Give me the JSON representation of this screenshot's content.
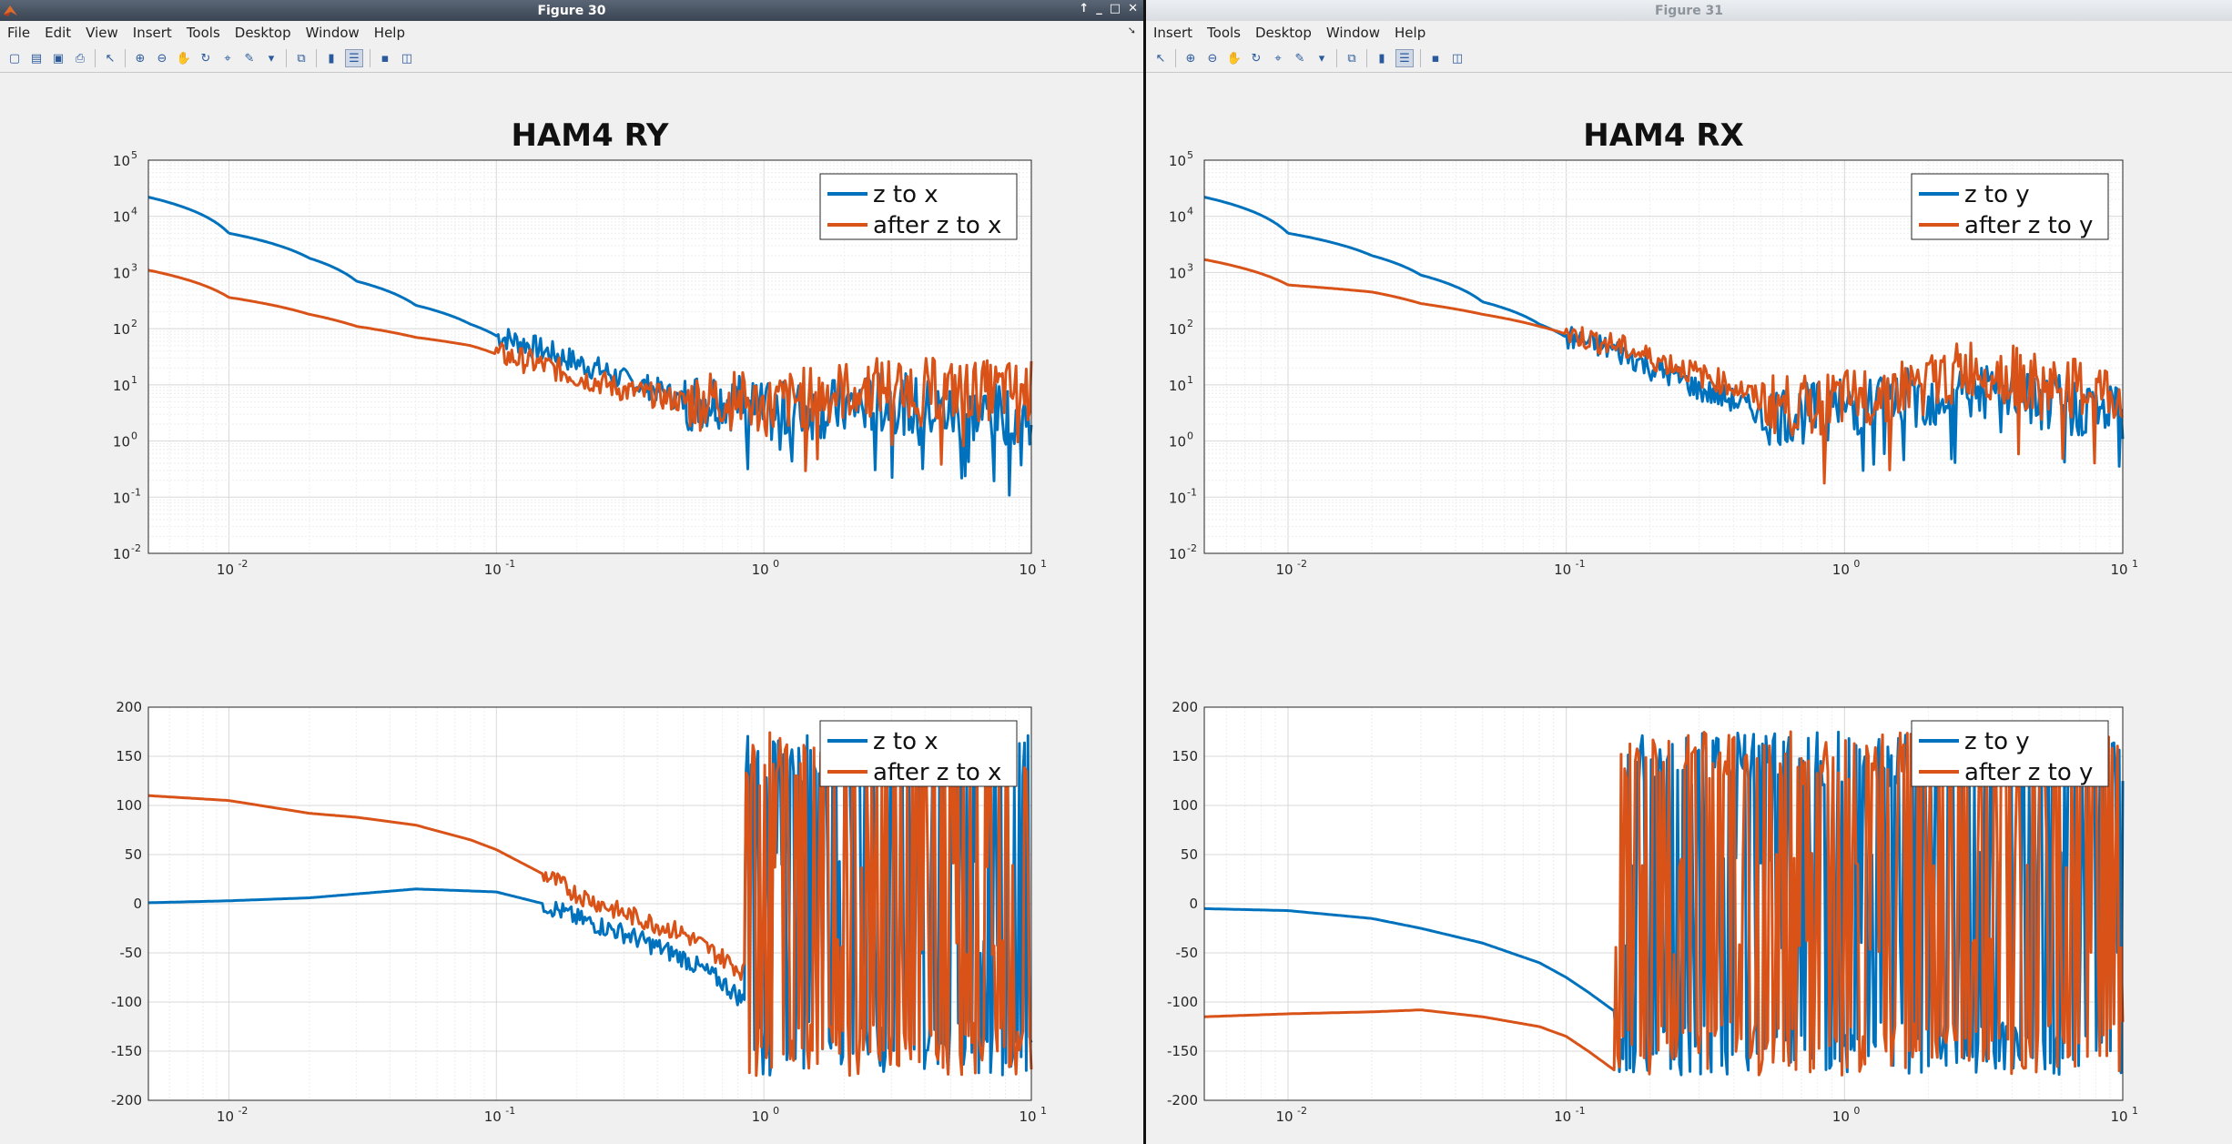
{
  "colors": {
    "blue": "#0072BD",
    "orange": "#D95319"
  },
  "windows": [
    {
      "title": "Figure 30",
      "menu": [
        "File",
        "Edit",
        "View",
        "Insert",
        "Tools",
        "Desktop",
        "Window",
        "Help"
      ],
      "plot_title": "HAM4 RY",
      "legend": [
        "z to x",
        "after z to x"
      ],
      "mag_yticks": [
        "10",
        "10",
        "10",
        "10",
        "10",
        "10",
        "10",
        "10"
      ],
      "mag_yexp": [
        "5",
        "4",
        "3",
        "2",
        "1",
        "0",
        "-1",
        "-2"
      ],
      "phase_yticks": [
        "200",
        "150",
        "100",
        "50",
        "0",
        "-50",
        "-100",
        "-150",
        "-200"
      ],
      "xticks": [
        "10",
        "10",
        "10",
        "10"
      ],
      "xexp": [
        "-2",
        "-1",
        "0",
        "1"
      ]
    },
    {
      "title": "Figure 31",
      "menu": [
        "Insert",
        "Tools",
        "Desktop",
        "Window",
        "Help"
      ],
      "plot_title": "HAM4 RX",
      "legend": [
        "z to y",
        "after z to y"
      ],
      "mag_yticks": [
        "10",
        "10",
        "10",
        "10",
        "10",
        "10",
        "10",
        "10"
      ],
      "mag_yexp": [
        "5",
        "4",
        "3",
        "2",
        "1",
        "0",
        "-1",
        "-2"
      ],
      "phase_yticks": [
        "200",
        "150",
        "100",
        "50",
        "0",
        "-50",
        "-100",
        "-150",
        "-200"
      ],
      "xticks": [
        "10",
        "10",
        "10",
        "10"
      ],
      "xexp": [
        "-2",
        "-1",
        "0",
        "1"
      ]
    }
  ],
  "chart_data": [
    {
      "type": "line",
      "title": "HAM4 RY",
      "xscale": "log",
      "yscale": "log",
      "xlim": [
        0.005,
        10
      ],
      "ylim": [
        0.01,
        100000
      ],
      "grid": true,
      "legend_position": "top-right",
      "series": [
        {
          "name": "z to x",
          "x": [
            0.005,
            0.01,
            0.02,
            0.03,
            0.05,
            0.08,
            0.1,
            0.15,
            0.2,
            0.3,
            0.5,
            0.7,
            1,
            2,
            3,
            5,
            10
          ],
          "y": [
            22000,
            5000,
            1800,
            700,
            260,
            120,
            75,
            40,
            25,
            12,
            5,
            6,
            3,
            4,
            5,
            3,
            3
          ]
        },
        {
          "name": "after z to x",
          "x": [
            0.005,
            0.01,
            0.02,
            0.03,
            0.05,
            0.08,
            0.1,
            0.15,
            0.2,
            0.3,
            0.5,
            0.7,
            1,
            2,
            3,
            5,
            10
          ],
          "y": [
            1100,
            360,
            180,
            110,
            70,
            50,
            35,
            22,
            14,
            8,
            5,
            6,
            4,
            8,
            10,
            8,
            8
          ]
        }
      ]
    },
    {
      "type": "line",
      "title": "",
      "xscale": "log",
      "xlim": [
        0.005,
        10
      ],
      "ylim": [
        -200,
        200
      ],
      "grid": true,
      "legend_position": "top-right",
      "series": [
        {
          "name": "z to x",
          "x": [
            0.005,
            0.01,
            0.02,
            0.03,
            0.05,
            0.08,
            0.1,
            0.15,
            0.2,
            0.3,
            0.5,
            0.7,
            0.85
          ],
          "y": [
            1,
            3,
            6,
            10,
            15,
            13,
            12,
            0,
            -15,
            -30,
            -55,
            -80,
            -100
          ]
        },
        {
          "name": "after z to x",
          "x": [
            0.005,
            0.01,
            0.02,
            0.03,
            0.05,
            0.08,
            0.1,
            0.15,
            0.2,
            0.3,
            0.5,
            0.7,
            0.85
          ],
          "y": [
            110,
            105,
            92,
            88,
            80,
            65,
            55,
            30,
            10,
            -10,
            -30,
            -55,
            -70
          ]
        }
      ]
    },
    {
      "type": "line",
      "title": "HAM4 RX",
      "xscale": "log",
      "yscale": "log",
      "xlim": [
        0.005,
        10
      ],
      "ylim": [
        0.01,
        100000
      ],
      "grid": true,
      "legend_position": "top-right",
      "series": [
        {
          "name": "z to y",
          "x": [
            0.005,
            0.01,
            0.02,
            0.03,
            0.05,
            0.08,
            0.1,
            0.15,
            0.2,
            0.3,
            0.5,
            0.7,
            1,
            2,
            3,
            5,
            10
          ],
          "y": [
            22000,
            5000,
            2000,
            900,
            300,
            120,
            70,
            40,
            20,
            8,
            3,
            3,
            4,
            6,
            8,
            5,
            3
          ]
        },
        {
          "name": "after z to y",
          "x": [
            0.005,
            0.01,
            0.02,
            0.03,
            0.05,
            0.08,
            0.1,
            0.15,
            0.2,
            0.3,
            0.5,
            0.7,
            1,
            2,
            3,
            5,
            10
          ],
          "y": [
            1700,
            600,
            450,
            280,
            180,
            110,
            80,
            50,
            30,
            15,
            5,
            4,
            5,
            10,
            20,
            10,
            6
          ]
        }
      ]
    },
    {
      "type": "line",
      "title": "",
      "xscale": "log",
      "xlim": [
        0.005,
        10
      ],
      "ylim": [
        -200,
        200
      ],
      "grid": true,
      "legend_position": "top-right",
      "series": [
        {
          "name": "z to y",
          "x": [
            0.005,
            0.01,
            0.02,
            0.03,
            0.05,
            0.08,
            0.1,
            0.12,
            0.15
          ],
          "y": [
            -5,
            -7,
            -15,
            -25,
            -40,
            -60,
            -75,
            -90,
            -110
          ]
        },
        {
          "name": "after z to y",
          "x": [
            0.005,
            0.01,
            0.02,
            0.03,
            0.05,
            0.08,
            0.1,
            0.12,
            0.15
          ],
          "y": [
            -115,
            -112,
            -110,
            -108,
            -115,
            -125,
            -135,
            -150,
            -170
          ]
        }
      ]
    }
  ]
}
